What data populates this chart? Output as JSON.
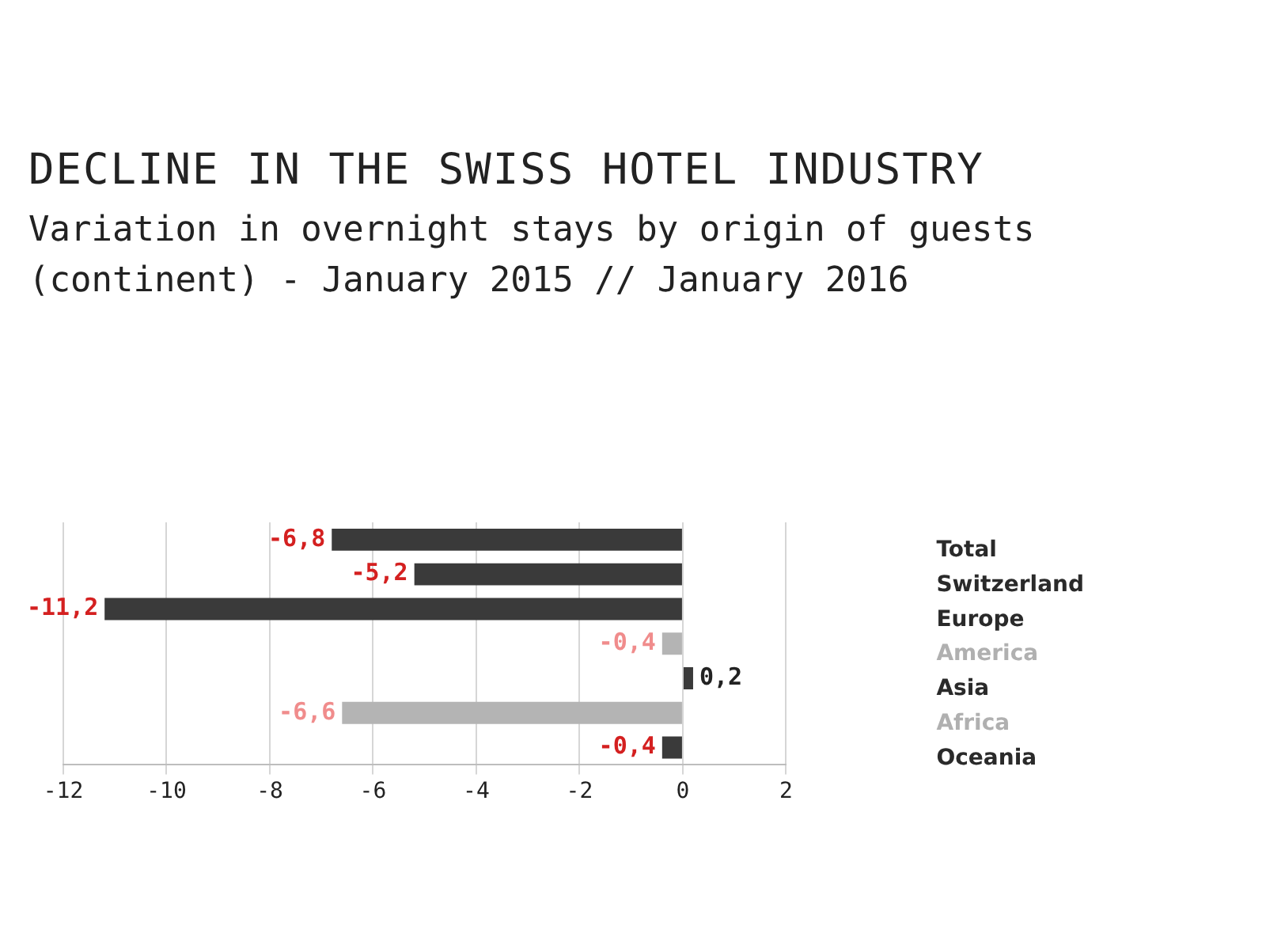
{
  "chart_data": {
    "type": "bar",
    "orientation": "horizontal",
    "title": "DECLINE IN THE SWISS HOTEL INDUSTRY",
    "subtitle": "Variation in overnight stays by origin of guests (continent) - January 2015 // January 2016",
    "categories": [
      "Total",
      "Switzerland",
      "Europe",
      "America",
      "Asia",
      "Africa",
      "Oceania"
    ],
    "values": [
      -6.8,
      -5.2,
      -11.2,
      -0.4,
      0.2,
      -6.6,
      -0.4
    ],
    "value_labels": [
      "-6,8",
      "-5,2",
      "-11,2",
      "-0,4",
      "0,2",
      "-6,6",
      "-0,4"
    ],
    "colors": [
      "#3a3a3a",
      "#3a3a3a",
      "#3a3a3a",
      "#b4b4b4",
      "#3a3a3a",
      "#b4b4b4",
      "#3a3a3a"
    ],
    "xlim": [
      -12,
      2
    ],
    "xticks": [
      -12,
      -10,
      -8,
      -6,
      -4,
      -2,
      0,
      2
    ],
    "grid": "x",
    "legend": false
  }
}
